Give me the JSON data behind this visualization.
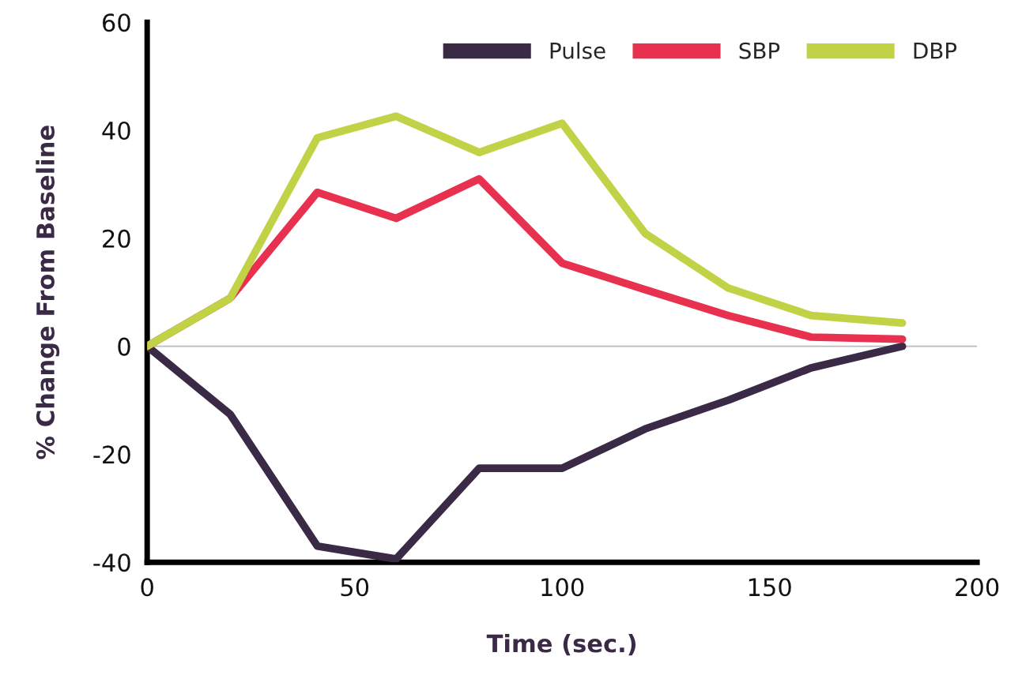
{
  "chart_data": {
    "type": "line",
    "xlabel": "Time (sec.)",
    "ylabel": "% Change From Baseline",
    "x": [
      0,
      20,
      41,
      60,
      80,
      100,
      120,
      140,
      160,
      182
    ],
    "series": [
      {
        "name": "Pulse",
        "color": "#3a2a45",
        "values": [
          0,
          -12.6,
          -37,
          -39.4,
          -22.6,
          -22.6,
          -15.3,
          -10,
          -4,
          0
        ]
      },
      {
        "name": "SBP",
        "color": "#e8304f",
        "values": [
          0,
          8.9,
          28.5,
          23.7,
          31,
          15.4,
          10.5,
          5.7,
          1.7,
          1.3
        ]
      },
      {
        "name": "DBP",
        "color": "#c2d246",
        "values": [
          0,
          8.9,
          38.6,
          42.6,
          35.9,
          41.3,
          20.9,
          10.8,
          5.7,
          4.3
        ]
      }
    ],
    "xlim": [
      0,
      200
    ],
    "xticks": [
      0,
      50,
      100,
      150,
      200
    ],
    "ylim": [
      -40,
      60
    ],
    "yticks": [
      -40,
      -20,
      0,
      20,
      40,
      60
    ],
    "ref_lines": [
      {
        "axis": "y",
        "value": 0,
        "color": "#bbbbbb"
      }
    ],
    "grid": false,
    "legend": "top right",
    "marker": "none",
    "line_style": "solid"
  }
}
